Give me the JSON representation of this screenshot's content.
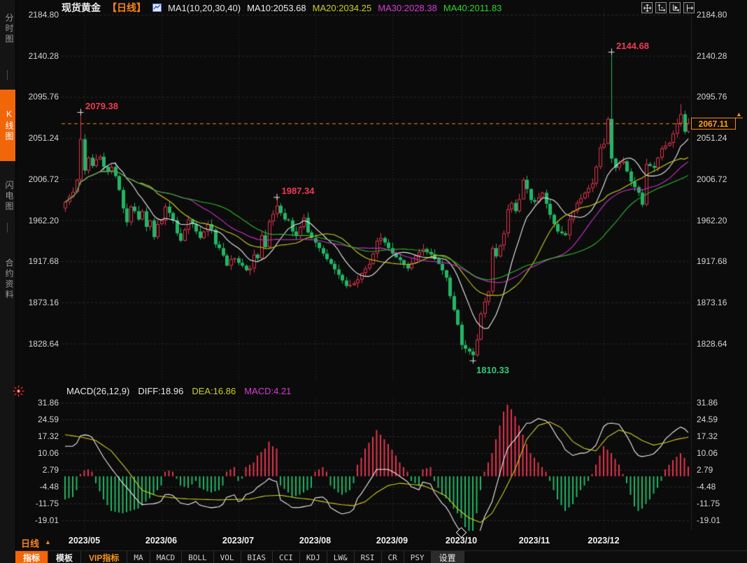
{
  "header": {
    "instrument": "现货黄金",
    "period": "【日线】",
    "ma_group": "MA1(10,20,30,40)",
    "ma10": "MA10:2053.68",
    "ma20": "MA20:2034.25",
    "ma30": "MA30:2028.38",
    "ma40": "MA40:2011.83"
  },
  "sidebar": {
    "tabs": [
      {
        "label": "分时图",
        "active": false
      },
      {
        "label": "K线图",
        "active": true
      },
      {
        "label": "闪电图",
        "active": false
      },
      {
        "label": "合约资料",
        "active": false
      }
    ]
  },
  "macd_header": {
    "title": "MACD(26,12,9)",
    "diff": "DIFF:18.96",
    "dea": "DEA:16.86",
    "macd": "MACD:4.21"
  },
  "last_price": "2067.11",
  "period_label": "日线",
  "period_caret": "▲",
  "price_arrow": "▲",
  "toolbar": [
    {
      "label": "指标",
      "style": "active"
    },
    {
      "label": "模板",
      "style": "plain"
    },
    {
      "label": "VIP指标",
      "style": "vip"
    },
    {
      "label": "MA",
      "style": "mono"
    },
    {
      "label": "MACD",
      "style": "mono"
    },
    {
      "label": "BOLL",
      "style": "mono"
    },
    {
      "label": "VOL",
      "style": "mono"
    },
    {
      "label": "BIAS",
      "style": "mono"
    },
    {
      "label": "CCI",
      "style": "mono"
    },
    {
      "label": "KDJ",
      "style": "mono"
    },
    {
      "label": "LW&",
      "style": "mono"
    },
    {
      "label": "RSI",
      "style": "mono"
    },
    {
      "label": "CR",
      "style": "mono"
    },
    {
      "label": "PSY",
      "style": "mono"
    },
    {
      "label": "设置",
      "style": "settings"
    }
  ],
  "colors": {
    "up": "#e3344e",
    "down": "#22b566",
    "ma10": "#efefef",
    "ma20": "#cdd021",
    "ma30": "#cc33cc",
    "ma40": "#2eb82e",
    "accent_orange": "#f7821b",
    "price_line": "#f08c1e",
    "annotation_up": "#ee3b52",
    "annotation_down": "#2fca79",
    "grid": "#2b2b2b",
    "axis_text": "#d4d4d4"
  },
  "chart_data": {
    "type": "candlestick+macd",
    "title": "现货黄金 日线",
    "price_axis_ticks": [
      "2184.80",
      "2140.28",
      "2095.76",
      "2051.24",
      "2006.72",
      "1962.20",
      "1917.68",
      "1873.16",
      "1828.64"
    ],
    "macd_axis_ticks": [
      "31.86",
      "24.59",
      "17.32",
      "10.06",
      "2.79",
      "-4.48",
      "-11.75",
      "-19.01"
    ],
    "x_labels": [
      "2023/05",
      "2023/06",
      "2023/07",
      "2023/08",
      "2023/09",
      "2023/10",
      "2023/11",
      "2023/12"
    ],
    "month_start_idx": [
      5,
      25,
      45,
      65,
      85,
      103,
      122,
      140
    ],
    "price_top_tick": 2184.8,
    "price_tick_step": 44.52,
    "macd_top_tick": 31.86,
    "macd_tick_step": 7.27,
    "last_price_value": 2067.11,
    "open_first": 1975,
    "closes": [
      1982,
      1988,
      1993,
      2006,
      2050,
      2016,
      2030,
      2021,
      2028,
      2031,
      2020,
      2015,
      2020,
      2010,
      1995,
      1975,
      1960,
      1977,
      1972,
      1963,
      1972,
      1955,
      1962,
      1944,
      1958,
      1962,
      1977,
      1970,
      1962,
      1948,
      1940,
      1952,
      1963,
      1958,
      1950,
      1943,
      1950,
      1958,
      1952,
      1936,
      1932,
      1924,
      1913,
      1920,
      1921,
      1916,
      1913,
      1908,
      1910,
      1925,
      1921,
      1946,
      1933,
      1961,
      1969,
      1978,
      1970,
      1963,
      1962,
      1950,
      1945,
      1955,
      1965,
      1949,
      1943,
      1938,
      1932,
      1926,
      1920,
      1915,
      1909,
      1903,
      1897,
      1891,
      1892,
      1894,
      1898,
      1905,
      1910,
      1915,
      1926,
      1940,
      1943,
      1938,
      1932,
      1926,
      1922,
      1919,
      1914,
      1910,
      1916,
      1924,
      1928,
      1931,
      1928,
      1925,
      1920,
      1915,
      1908,
      1900,
      1880,
      1865,
      1849,
      1827,
      1823,
      1820,
      1816,
      1833,
      1861,
      1874,
      1885,
      1932,
      1923,
      1935,
      1948,
      1974,
      1981,
      1972,
      1985,
      2006,
      1996,
      1984,
      1982,
      1987,
      1992,
      1980,
      1968,
      1958,
      1950,
      1948,
      1946,
      1963,
      1972,
      1981,
      1986,
      1992,
      1997,
      2002,
      2020,
      2041,
      2045,
      2072,
      2029,
      2019,
      2024,
      2026,
      2015,
      2004,
      1998,
      1992,
      1979,
      2023,
      2021,
      2019,
      2030,
      2040,
      2043,
      2046,
      2056,
      2067,
      2077,
      2058,
      2067.11
    ],
    "wick_overrides": {
      "4": {
        "high": 2079.38
      },
      "55": {
        "high": 1987.34
      },
      "106": {
        "low": 1810.33
      },
      "142": {
        "high": 2144.68
      },
      "160": {
        "high": 2088
      }
    },
    "ma_windows": [
      10,
      20,
      30,
      40
    ],
    "dea_anchors": [
      [
        0,
        18
      ],
      [
        4,
        17
      ],
      [
        8,
        15.5
      ],
      [
        12,
        11
      ],
      [
        16,
        3
      ],
      [
        20,
        -6
      ],
      [
        24,
        -8.5
      ],
      [
        28,
        -9.3
      ],
      [
        32,
        -9.8
      ],
      [
        36,
        -10
      ],
      [
        40,
        -10.2
      ],
      [
        44,
        -10
      ],
      [
        48,
        -9.9
      ],
      [
        52,
        -8.5
      ],
      [
        56,
        -8.2
      ],
      [
        60,
        -9.3
      ],
      [
        64,
        -10
      ],
      [
        68,
        -11.3
      ],
      [
        72,
        -12.3
      ],
      [
        75,
        -12.7
      ],
      [
        78,
        -11
      ],
      [
        81,
        -7
      ],
      [
        84,
        -4
      ],
      [
        87,
        -3
      ],
      [
        90,
        -3.5
      ],
      [
        93,
        -4
      ],
      [
        96,
        -6
      ],
      [
        99,
        -8.5
      ],
      [
        102,
        -14
      ],
      [
        105,
        -18
      ],
      [
        108,
        -20
      ],
      [
        111,
        -16
      ],
      [
        114,
        -7
      ],
      [
        117,
        3
      ],
      [
        120,
        16
      ],
      [
        123,
        22
      ],
      [
        126,
        23.5
      ],
      [
        129,
        21
      ],
      [
        132,
        15
      ],
      [
        135,
        12
      ],
      [
        138,
        11
      ],
      [
        141,
        17
      ],
      [
        144,
        20
      ],
      [
        147,
        18.5
      ],
      [
        150,
        15.5
      ],
      [
        153,
        13.5
      ],
      [
        156,
        14.5
      ],
      [
        159,
        16
      ],
      [
        162,
        16.86
      ]
    ],
    "hist_anchors": [
      [
        0,
        -10
      ],
      [
        2,
        -9
      ],
      [
        3,
        -6
      ],
      [
        4,
        1
      ],
      [
        5,
        2.5
      ],
      [
        6,
        3
      ],
      [
        7,
        2
      ],
      [
        8,
        -3
      ],
      [
        10,
        -10
      ],
      [
        12,
        -15
      ],
      [
        15,
        -16
      ],
      [
        17,
        -15
      ],
      [
        19,
        -14
      ],
      [
        21,
        -11
      ],
      [
        23,
        -8
      ],
      [
        25,
        -4
      ],
      [
        26,
        2
      ],
      [
        27,
        2.5
      ],
      [
        28,
        2
      ],
      [
        29,
        -1
      ],
      [
        30,
        -4
      ],
      [
        32,
        -5
      ],
      [
        34,
        -2
      ],
      [
        35,
        -5
      ],
      [
        37,
        -6.5
      ],
      [
        38,
        -7
      ],
      [
        40,
        -6
      ],
      [
        41,
        -4
      ],
      [
        42,
        2
      ],
      [
        43,
        3
      ],
      [
        44,
        4
      ],
      [
        45,
        -2
      ],
      [
        46,
        -1
      ],
      [
        47,
        4
      ],
      [
        49,
        6
      ],
      [
        50,
        9
      ],
      [
        52,
        12
      ],
      [
        53,
        15
      ],
      [
        54,
        13
      ],
      [
        55,
        12
      ],
      [
        56,
        -4
      ],
      [
        58,
        -7
      ],
      [
        59,
        -9
      ],
      [
        61,
        -8
      ],
      [
        63,
        -6
      ],
      [
        64,
        -5
      ],
      [
        65,
        2
      ],
      [
        66,
        3
      ],
      [
        67,
        4
      ],
      [
        68,
        2
      ],
      [
        69,
        -4
      ],
      [
        71,
        -7
      ],
      [
        72,
        -8
      ],
      [
        74,
        -6
      ],
      [
        75,
        -3
      ],
      [
        76,
        5
      ],
      [
        77,
        8
      ],
      [
        78,
        12
      ],
      [
        80,
        17
      ],
      [
        81,
        20
      ],
      [
        82,
        18
      ],
      [
        84,
        14
      ],
      [
        86,
        9
      ],
      [
        87,
        6
      ],
      [
        89,
        2
      ],
      [
        90,
        -2
      ],
      [
        92,
        -4
      ],
      [
        93,
        3
      ],
      [
        95,
        4
      ],
      [
        96,
        -2
      ],
      [
        98,
        -8
      ],
      [
        100,
        -11
      ],
      [
        101,
        -14
      ],
      [
        103,
        -18
      ],
      [
        104,
        -22
      ],
      [
        105,
        -25
      ],
      [
        106,
        -24
      ],
      [
        107,
        -16
      ],
      [
        108,
        -6
      ],
      [
        109,
        2
      ],
      [
        110,
        6
      ],
      [
        111,
        10
      ],
      [
        112,
        16
      ],
      [
        113,
        22
      ],
      [
        114,
        28
      ],
      [
        115,
        31
      ],
      [
        116,
        29
      ],
      [
        117,
        26
      ],
      [
        118,
        22
      ],
      [
        119,
        18
      ],
      [
        120,
        14
      ],
      [
        121,
        10
      ],
      [
        122,
        8
      ],
      [
        123,
        6
      ],
      [
        124,
        4
      ],
      [
        125,
        2
      ],
      [
        126,
        -2
      ],
      [
        127,
        -6
      ],
      [
        128,
        -10
      ],
      [
        130,
        -15
      ],
      [
        132,
        -12
      ],
      [
        134,
        -6
      ],
      [
        136,
        -2
      ],
      [
        137,
        1
      ],
      [
        139,
        9
      ],
      [
        140,
        13
      ],
      [
        142,
        10
      ],
      [
        144,
        5
      ],
      [
        146,
        -3
      ],
      [
        147,
        -8
      ],
      [
        148,
        -13
      ],
      [
        149,
        -15
      ],
      [
        150,
        -14
      ],
      [
        152,
        -10
      ],
      [
        154,
        -5
      ],
      [
        155,
        -2
      ],
      [
        156,
        3
      ],
      [
        158,
        7
      ],
      [
        160,
        10
      ],
      [
        161,
        8
      ],
      [
        162,
        4.21
      ]
    ],
    "annotations": [
      {
        "text": "2079.38",
        "idx": 4,
        "price": 2079.38,
        "type": "high"
      },
      {
        "text": "1987.34",
        "idx": 55,
        "price": 1987.34,
        "type": "high"
      },
      {
        "text": "1810.33",
        "idx": 106,
        "price": 1810.33,
        "type": "low"
      },
      {
        "text": "2144.68",
        "idx": 142,
        "price": 2144.68,
        "type": "high"
      }
    ],
    "x_marker_idx": 103
  }
}
